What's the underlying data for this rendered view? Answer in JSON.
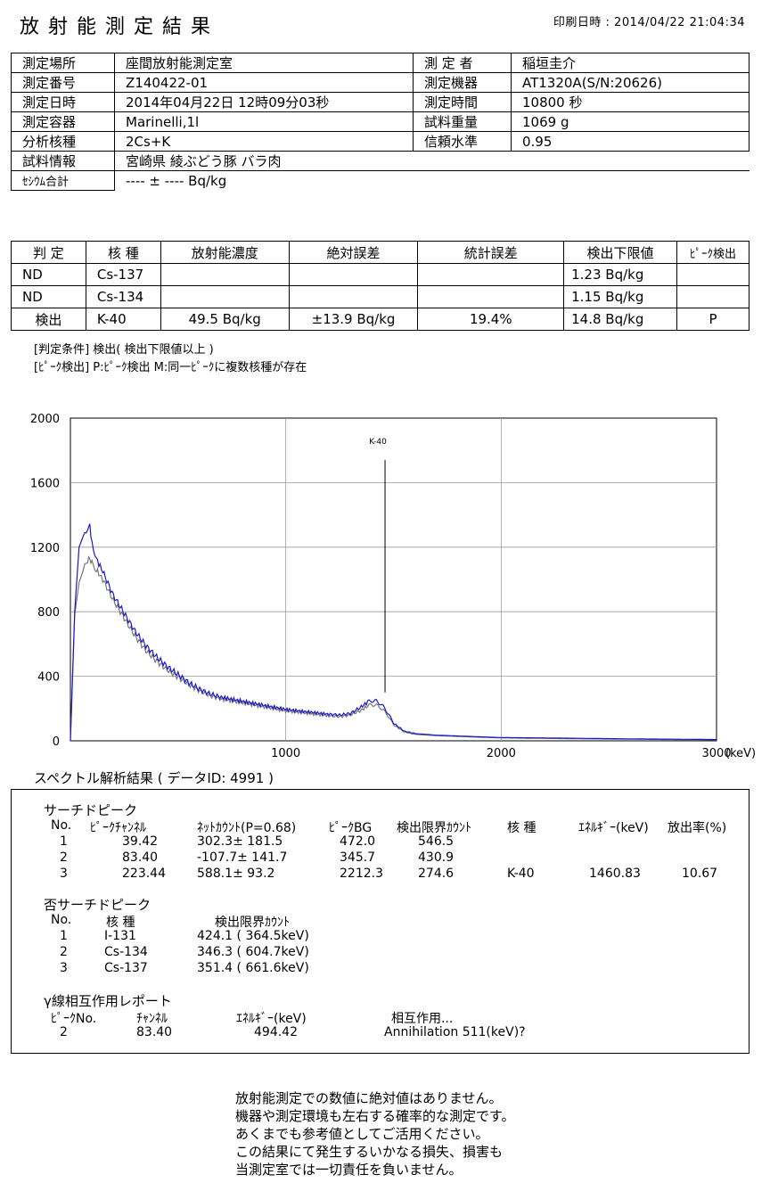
{
  "header": {
    "title": "放射能測定結果",
    "printed": "印刷日時 : 2014/04/22 21:04:34"
  },
  "info": {
    "rows": [
      {
        "l1": "測定場所",
        "v1": "座間放射能測定室",
        "l2": "測 定 者",
        "v2": "稲垣圭介"
      },
      {
        "l1": "測定番号",
        "v1": "Z140422-01",
        "l2": "測定機器",
        "v2": "AT1320A(S/N:20626)"
      },
      {
        "l1": "測定日時",
        "v1": "2014年04月22日 12時09分03秒",
        "l2": "測定時間",
        "v2": "10800 秒"
      },
      {
        "l1": "測定容器",
        "v1": "Marinelli,1l",
        "l2": "試料重量",
        "v2": "1069 g"
      },
      {
        "l1": "分析核種",
        "v1": "2Cs+K",
        "l2": "信頼水準",
        "v2": "0.95"
      }
    ],
    "sample_label": "試料情報",
    "sample_value": "宮崎県 綾ぶどう豚 バラ肉",
    "cesium_label": "ｾｼｳﾑ合計",
    "cesium_value": "---- ± ---- Bq/kg"
  },
  "results": {
    "headers": [
      "判 定",
      "核 種",
      "放射能濃度",
      "絶対誤差",
      "統計誤差",
      "検出下限値",
      "ﾋﾟｰｸ検出"
    ],
    "rows": [
      {
        "judge": "ND",
        "nuclide": "Cs-137",
        "conc": "",
        "abs_err": "",
        "stat_err": "",
        "lld": "1.23  Bq/kg",
        "peak": ""
      },
      {
        "judge": "ND",
        "nuclide": "Cs-134",
        "conc": "",
        "abs_err": "",
        "stat_err": "",
        "lld": "1.15  Bq/kg",
        "peak": ""
      },
      {
        "judge": "検出",
        "nuclide": "K-40",
        "conc": "49.5  Bq/kg",
        "abs_err": "±13.9  Bq/kg",
        "stat_err": "19.4%",
        "lld": "14.8  Bq/kg",
        "peak": "P"
      }
    ],
    "note1": "[判定条件]  検出( 検出下限値以上 )",
    "note2": "[ﾋﾟｰｸ検出]  P:ﾋﾟｰｸ検出  M:同一ﾋﾟｰｸに複数核種が存在"
  },
  "chart_data": {
    "type": "line",
    "xlabel": "(keV)",
    "ylabel": "",
    "xlim": [
      0,
      3000
    ],
    "ylim": [
      0,
      2000
    ],
    "x_ticks": [
      0,
      1000,
      2000,
      3000
    ],
    "y_ticks": [
      0,
      400,
      800,
      1200,
      1600,
      2000
    ],
    "grid": true,
    "annotation": {
      "label": "K-40",
      "x": 1460.83
    },
    "series": [
      {
        "color": "#1a1acc",
        "x": [
          0,
          20,
          40,
          60,
          80,
          90,
          100,
          120,
          150,
          200,
          250,
          300,
          350,
          400,
          450,
          500,
          550,
          600,
          650,
          700,
          800,
          900,
          1000,
          1100,
          1200,
          1250,
          1300,
          1350,
          1380,
          1400,
          1420,
          1440,
          1460,
          1480,
          1500,
          1550,
          1600,
          1700,
          1800,
          1900,
          2000,
          2200,
          2400,
          2600,
          2800,
          3000
        ],
        "y": [
          0,
          800,
          1200,
          1270,
          1320,
          1330,
          1230,
          1130,
          1050,
          900,
          790,
          680,
          590,
          520,
          460,
          410,
          360,
          320,
          290,
          270,
          245,
          220,
          195,
          180,
          165,
          160,
          170,
          210,
          240,
          250,
          245,
          230,
          200,
          160,
          110,
          60,
          45,
          35,
          30,
          25,
          20,
          18,
          15,
          12,
          10,
          8
        ]
      },
      {
        "color": "#777777",
        "x": [
          0,
          20,
          40,
          60,
          80,
          90,
          100,
          120,
          150,
          200,
          250,
          300,
          350,
          400,
          450,
          500,
          550,
          600,
          650,
          700,
          800,
          900,
          1000,
          1100,
          1200,
          1250,
          1300,
          1350,
          1380,
          1400,
          1420,
          1440,
          1460,
          1480,
          1500,
          1550,
          1600,
          1700,
          1800,
          1900,
          2000,
          2200,
          2400,
          2600,
          2800,
          3000
        ],
        "y": [
          0,
          780,
          980,
          1060,
          1120,
          1130,
          1100,
          1060,
          1000,
          870,
          760,
          650,
          560,
          495,
          440,
          395,
          350,
          310,
          280,
          260,
          235,
          210,
          185,
          170,
          155,
          150,
          160,
          190,
          215,
          225,
          220,
          205,
          180,
          145,
          100,
          55,
          40,
          32,
          27,
          22,
          18,
          15,
          12,
          10,
          8,
          6
        ]
      }
    ]
  },
  "analysis": {
    "section_title": "スペクトル解析結果 ( データID: 4991 )",
    "search": {
      "title": "サーチドピーク",
      "headers": [
        "No.",
        "ﾋﾟｰｸﾁｬﾝﾈﾙ",
        "ﾈｯﾄｶｳﾝﾄ(P=0.68)",
        "ﾋﾟｰｸBG",
        "検出限界ｶｳﾝﾄ",
        "核 種",
        "ｴﾈﾙｷﾞｰ(keV)",
        "放出率(%)"
      ],
      "rows": [
        [
          "1",
          "39.42",
          "302.3± 181.5",
          "472.0",
          "546.5",
          "",
          "",
          ""
        ],
        [
          "2",
          "83.40",
          "-107.7± 141.7",
          "345.7",
          "430.9",
          "",
          "",
          ""
        ],
        [
          "3",
          "223.44",
          "588.1± 93.2",
          "2212.3",
          "274.6",
          "K-40",
          "1460.83",
          "10.67"
        ]
      ]
    },
    "nonsearch": {
      "title": "否サーチドピーク",
      "headers": [
        "No.",
        "核 種",
        "検出限界ｶｳﾝﾄ"
      ],
      "rows": [
        [
          "1",
          "I-131",
          "424.1 ( 364.5keV)"
        ],
        [
          "2",
          "Cs-134",
          "346.3 ( 604.7keV)"
        ],
        [
          "3",
          "Cs-137",
          "351.4 ( 661.6keV)"
        ]
      ]
    },
    "gamma": {
      "title": "γ線相互作用レポート",
      "headers": [
        "ﾋﾟｰｸNo.",
        "ﾁｬﾝﾈﾙ",
        "ｴﾈﾙｷﾞｰ(keV)",
        "相互作用..."
      ],
      "rows": [
        [
          "2",
          "83.40",
          "494.42",
          "Annihilation 511(keV)?"
        ]
      ]
    }
  },
  "disclaimer": [
    "放射能測定での数値に絶対値はありません。",
    "機器や測定環境も左右する確率的な測定です。",
    "あくまでも参考値としてご活用ください。",
    "この結果にて発生するいかなる損失、損害も",
    "当測定室では一切責任を負いません。"
  ]
}
